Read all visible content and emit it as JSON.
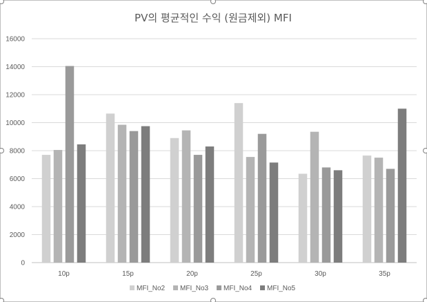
{
  "chart_data": {
    "type": "bar",
    "title": "PV의 평균적인 수익 (원금제외) MFI",
    "xlabel": "",
    "ylabel": "",
    "categories": [
      "10p",
      "15p",
      "20p",
      "25p",
      "30p",
      "35p"
    ],
    "ylim": [
      0,
      16000
    ],
    "yticks": [
      0,
      2000,
      4000,
      6000,
      8000,
      10000,
      12000,
      14000,
      16000
    ],
    "grid": true,
    "legend_position": "bottom",
    "series": [
      {
        "name": "MFI_No2",
        "color": "#d0d0d0",
        "values": [
          7700,
          10650,
          8900,
          11400,
          6350,
          7650
        ]
      },
      {
        "name": "MFI_No3",
        "color": "#b4b4b4",
        "values": [
          8050,
          9850,
          9450,
          7550,
          9350,
          7500
        ]
      },
      {
        "name": "MFI_No4",
        "color": "#9a9a9a",
        "values": [
          14050,
          9400,
          7700,
          9200,
          6800,
          6700
        ]
      },
      {
        "name": "MFI_No5",
        "color": "#7d7d7d",
        "values": [
          8450,
          9750,
          8300,
          7150,
          6600,
          11000
        ]
      }
    ]
  }
}
